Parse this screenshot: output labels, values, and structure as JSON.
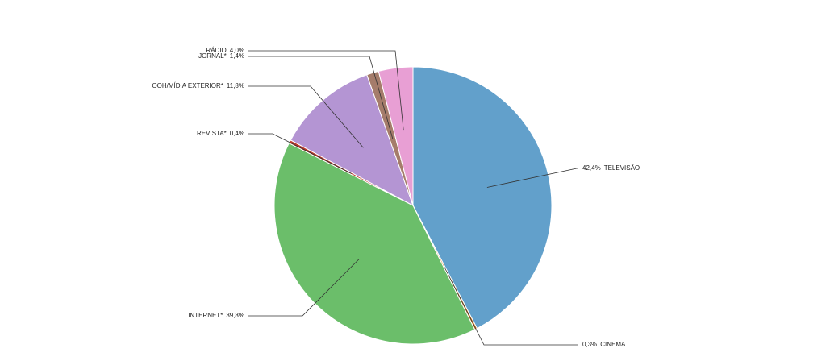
{
  "chart_data": {
    "type": "pie",
    "categories": [
      "TELEVISÃO",
      "CINEMA",
      "INTERNET*",
      "REVISTA*",
      "OOH/MÍDIA EXTERIOR*",
      "JORNAL*",
      "RÁDIO"
    ],
    "values": [
      42.4,
      0.3,
      39.8,
      0.4,
      11.8,
      1.4,
      4.0
    ],
    "value_labels": [
      "42,4%",
      "0,3%",
      "39,8%",
      "0,4%",
      "11,8%",
      "1,4%",
      "4,0%"
    ],
    "colors": [
      "#62a0cb",
      "#d9822b",
      "#6bbe6a",
      "#c0392b",
      "#b495d3",
      "#a57c6b",
      "#e89fd4"
    ]
  }
}
